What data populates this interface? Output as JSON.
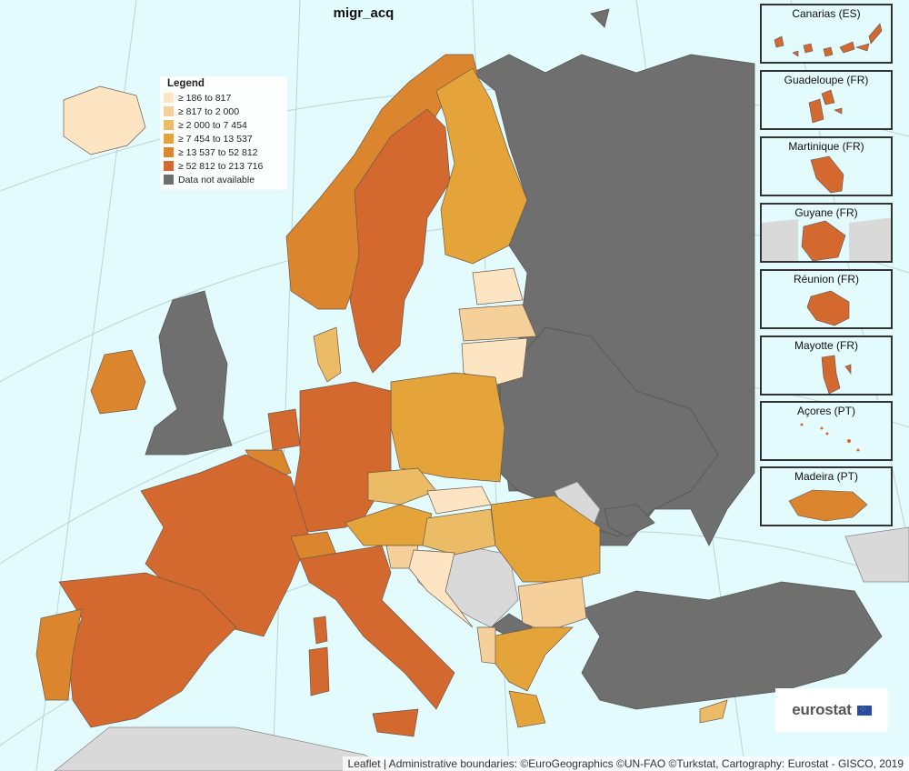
{
  "map": {
    "title": "migr_acq",
    "legend": {
      "title": "Legend",
      "classes": [
        {
          "label": "≥ 186 to 817",
          "color": "#fde4c3"
        },
        {
          "label": "≥ 817 to 2 000",
          "color": "#f5d09a"
        },
        {
          "label": "≥ 2 000 to 7 454",
          "color": "#ecbb66"
        },
        {
          "label": "≥ 7 454 to 13 537",
          "color": "#e4a43a"
        },
        {
          "label": "≥ 13 537 to 52 812",
          "color": "#dc852f"
        },
        {
          "label": "≥ 52 812 to 213 716",
          "color": "#d3692e"
        },
        {
          "label": "Data not available",
          "color": "#6f6f6f"
        }
      ]
    },
    "colors": {
      "sea": "#e4fbfd",
      "non_eu": "#6f6f6f",
      "other_land": "#d9d9d9",
      "border": "#666666"
    },
    "insets": [
      {
        "label": "Canarias (ES)"
      },
      {
        "label": "Guadeloupe (FR)"
      },
      {
        "label": "Martinique (FR)"
      },
      {
        "label": "Guyane (FR)"
      },
      {
        "label": "Réunion (FR)"
      },
      {
        "label": "Mayotte (FR)"
      },
      {
        "label": "Açores (PT)"
      },
      {
        "label": "Madeira (PT)"
      }
    ],
    "logo": "eurostat",
    "attribution": "Leaflet | Administrative boundaries: ©EuroGeographics ©UN-FAO ©Turkstat, Cartography: Eurostat - GISCO, 2019"
  }
}
